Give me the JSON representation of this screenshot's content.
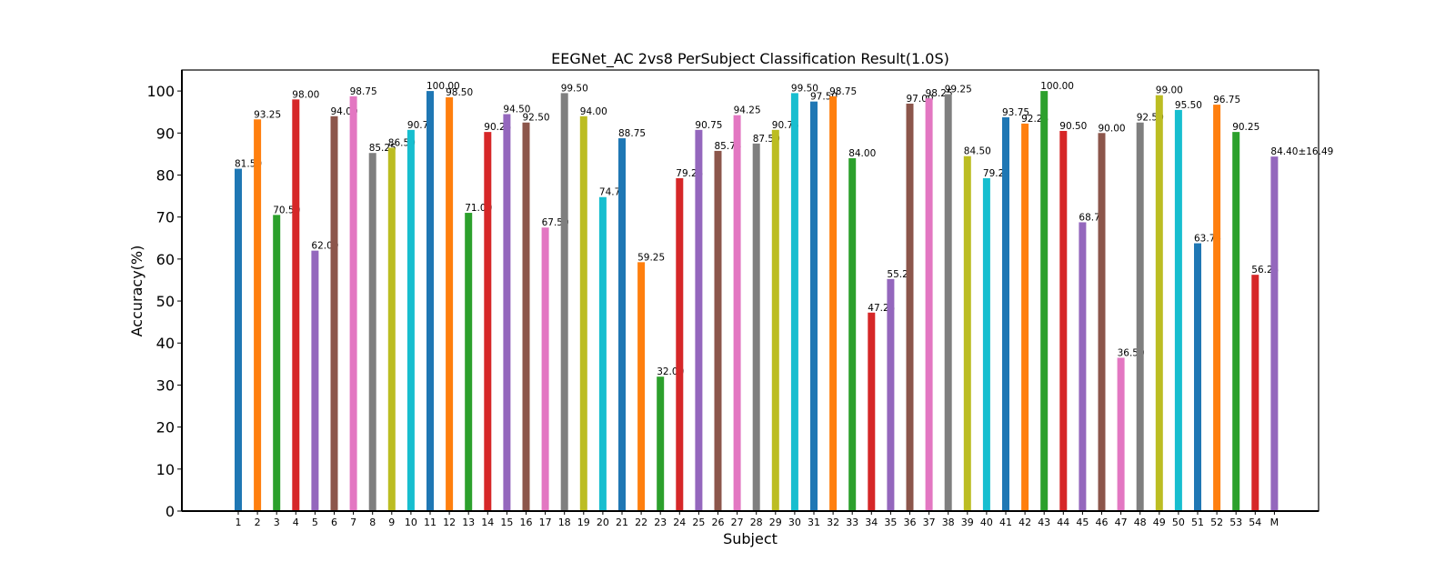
{
  "chart_data": {
    "type": "bar",
    "title": "EEGNet_AC 2vs8 PerSubject Classification Result(1.0S)",
    "xlabel": "Subject",
    "ylabel": "Accuracy(%)",
    "ylim": [
      0,
      105
    ],
    "yticks": [
      0,
      10,
      20,
      30,
      40,
      50,
      60,
      70,
      80,
      90,
      100
    ],
    "grid": false,
    "legend": "none",
    "categories": [
      "1",
      "2",
      "3",
      "4",
      "5",
      "6",
      "7",
      "8",
      "9",
      "10",
      "11",
      "12",
      "13",
      "14",
      "15",
      "16",
      "17",
      "18",
      "19",
      "20",
      "21",
      "22",
      "23",
      "24",
      "25",
      "26",
      "27",
      "28",
      "29",
      "30",
      "31",
      "32",
      "33",
      "34",
      "35",
      "36",
      "37",
      "38",
      "39",
      "40",
      "41",
      "42",
      "43",
      "44",
      "45",
      "46",
      "47",
      "48",
      "49",
      "50",
      "51",
      "52",
      "53",
      "54",
      "M"
    ],
    "values": [
      81.5,
      93.25,
      70.5,
      98.0,
      62.0,
      94.0,
      98.75,
      85.25,
      86.5,
      90.75,
      100.0,
      98.5,
      71.0,
      90.25,
      94.5,
      92.5,
      67.5,
      99.5,
      94.0,
      74.75,
      88.75,
      59.25,
      32.0,
      79.25,
      90.75,
      85.75,
      94.25,
      87.5,
      90.75,
      99.5,
      97.5,
      98.75,
      84.0,
      47.25,
      55.25,
      97.0,
      98.25,
      99.25,
      84.5,
      79.25,
      93.75,
      92.25,
      100.0,
      90.5,
      68.75,
      90.0,
      36.5,
      92.5,
      99.0,
      95.5,
      63.75,
      96.75,
      90.25,
      56.25,
      84.4
    ],
    "labels": [
      "81.50",
      "93.25",
      "70.50",
      "98.00",
      "62.00",
      "94.00",
      "98.75",
      "85.25",
      "86.50",
      "90.75",
      "100.00",
      "98.50",
      "71.00",
      "90.25",
      "94.50",
      "92.50",
      "67.50",
      "99.50",
      "94.00",
      "74.75",
      "88.75",
      "59.25",
      "32.00",
      "79.25",
      "90.75",
      "85.75",
      "94.25",
      "87.50",
      "90.75",
      "99.50",
      "97.50",
      "98.75",
      "84.00",
      "47.25",
      "55.25",
      "97.00",
      "98.25",
      "99.25",
      "84.50",
      "79.25",
      "93.75",
      "92.25",
      "100.00",
      "90.50",
      "68.75",
      "90.00",
      "36.50",
      "92.50",
      "99.00",
      "95.50",
      "63.75",
      "96.75",
      "90.25",
      "56.25",
      "84.40±16.49"
    ],
    "colors": [
      "#1f77b4",
      "#ff7f0e",
      "#2ca02c",
      "#d62728",
      "#9467bd",
      "#8c564b",
      "#e377c2",
      "#7f7f7f",
      "#bcbd22",
      "#17becf"
    ],
    "highlight_label_color": "#ff0000"
  }
}
